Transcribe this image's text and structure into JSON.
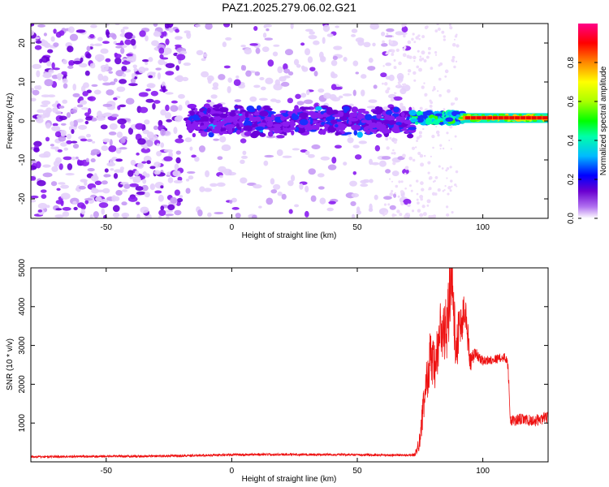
{
  "title": "PAZ1.2025.279.06.02.G21",
  "chart_data": [
    {
      "type": "heatmap",
      "title": "PAZ1.2025.279.06.02.G21",
      "xlabel": "Height of straight line (km)",
      "ylabel": "Frequency (Hz)",
      "xlim": [
        -80,
        126
      ],
      "ylim": [
        -25,
        25
      ],
      "xticks": [
        -50,
        0,
        50,
        100
      ],
      "yticks": [
        -20,
        -10,
        0,
        10,
        20
      ],
      "colorbar": {
        "label": "Normalized spectral amplitude",
        "range": [
          0.0,
          1.0
        ],
        "ticks": [
          0.0,
          0.2,
          0.4,
          0.6,
          0.8
        ],
        "colormap": "rainbow",
        "colors": [
          "#ffffff",
          "#cc88ff",
          "#7a00e6",
          "#0000ff",
          "#00ccff",
          "#00ff66",
          "#aaff00",
          "#ffff00",
          "#ff8800",
          "#ff0000",
          "#ff0088"
        ]
      },
      "features": [
        {
          "x_range": [
            -80,
            -20
          ],
          "freq_range": [
            -25,
            25
          ],
          "amplitude": 0.05,
          "description": "broadband noise"
        },
        {
          "x_range": [
            -20,
            70
          ],
          "freq_range": [
            -25,
            25
          ],
          "amplitude": 0.03,
          "description": "sparse noise"
        },
        {
          "x_range": [
            -18,
            72
          ],
          "freq_center": 0,
          "freq_width": 5,
          "amplitude": 0.12
        },
        {
          "x_range": [
            72,
            92
          ],
          "freq_center": 0.8,
          "freq_width": 2,
          "amplitude": 0.4
        },
        {
          "x_range": [
            92,
            126
          ],
          "freq_center": 0.8,
          "freq_width": 0.8,
          "amplitude": 0.95
        }
      ]
    },
    {
      "type": "line",
      "xlabel": "Height of straight line (km)",
      "ylabel": "SNR (10 * v/v)",
      "xlim": [
        -80,
        126
      ],
      "ylim": [
        0,
        5000
      ],
      "xticks": [
        -50,
        0,
        50,
        100
      ],
      "yticks": [
        1000,
        2000,
        3000,
        4000,
        5000
      ],
      "series": [
        {
          "name": "SNR",
          "color": "#ee1111",
          "x": [
            -80,
            -60,
            -40,
            -20,
            0,
            20,
            40,
            60,
            70,
            73,
            75,
            77,
            79,
            81,
            83,
            85,
            87,
            88,
            89,
            91,
            93,
            95,
            97,
            100,
            105,
            109,
            110,
            111,
            112,
            115,
            120,
            126
          ],
          "values": [
            130,
            140,
            145,
            155,
            185,
            190,
            185,
            175,
            170,
            180,
            600,
            1800,
            2700,
            2300,
            3400,
            3200,
            4300,
            5000,
            3000,
            3500,
            3900,
            2600,
            2800,
            2600,
            2650,
            2700,
            2500,
            1100,
            1050,
            1100,
            1050,
            1150
          ],
          "noise": [
            30,
            30,
            30,
            30,
            30,
            30,
            30,
            30,
            30,
            40,
            300,
            500,
            700,
            700,
            800,
            900,
            900,
            900,
            800,
            700,
            500,
            300,
            150,
            120,
            120,
            120,
            150,
            150,
            150,
            150,
            150,
            150
          ]
        }
      ]
    }
  ]
}
